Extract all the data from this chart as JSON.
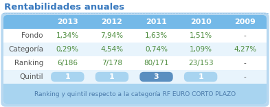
{
  "title": "Rentabilidades anuales",
  "years": [
    "2013",
    "2012",
    "2011",
    "2010",
    "2009"
  ],
  "rows": [
    {
      "label": "Fondo",
      "values": [
        "1,34%",
        "7,94%",
        "1,63%",
        "1,51%",
        "-"
      ]
    },
    {
      "label": "Categoría",
      "values": [
        "0,29%",
        "4,54%",
        "0,74%",
        "1,09%",
        "4,27%"
      ]
    },
    {
      "label": "Ranking",
      "values": [
        "6/186",
        "7/178",
        "80/171",
        "23/153",
        "-"
      ]
    },
    {
      "label": "Quintil",
      "values": [
        "1",
        "1",
        "3",
        "1",
        "-"
      ]
    }
  ],
  "header_bg": "#74b9e8",
  "header_text": "#ffffff",
  "quintil_pill_light": "#a8d4f0",
  "quintil_pill_dark": "#5a8fc0",
  "quintil_text": "#ffffff",
  "footer_bg": "#a8d4f0",
  "footer_text": "#4a7aaa",
  "footer_label": "Ranking y quintil respecto a la categoría RF EURO CORTO PLAZO",
  "title_color": "#3a7abf",
  "value_color": "#4a8a3a",
  "label_color": "#555555",
  "bg_color": "#ffffff",
  "outer_border_color": "#b8d8f0",
  "row_alt_bg": "#e8f4fc",
  "row_white_bg": "#ffffff",
  "dot_line_color": "#a0c8e8"
}
